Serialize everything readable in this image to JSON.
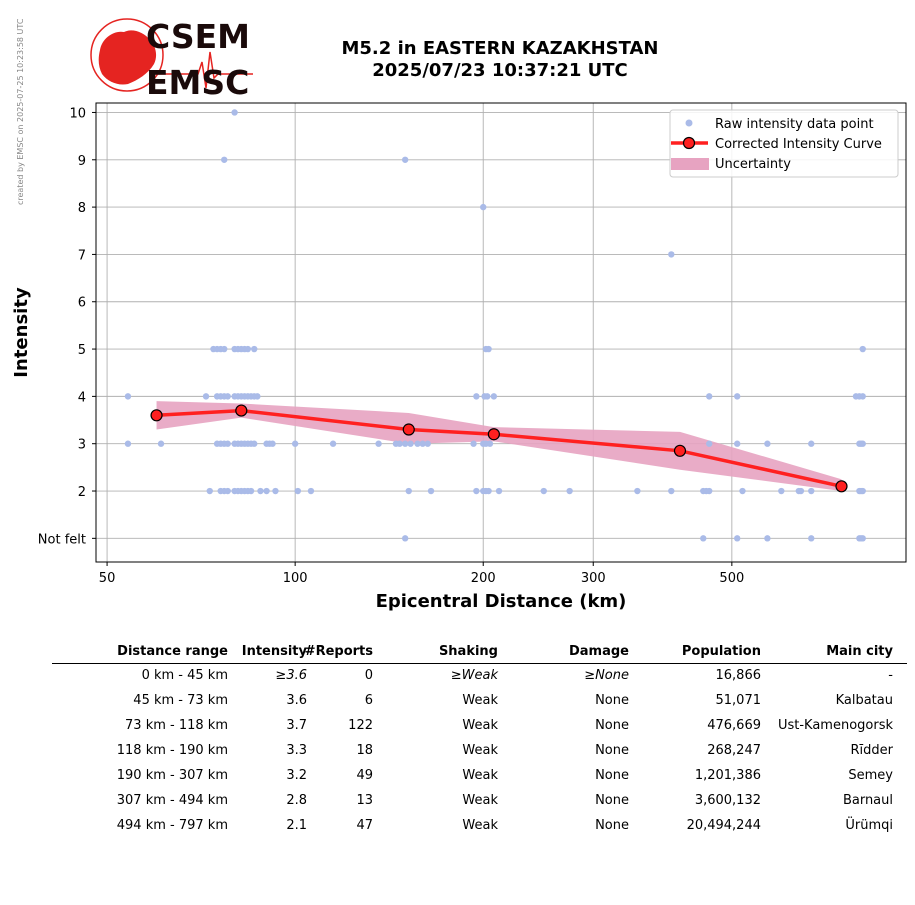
{
  "watermark": "created by EMSC on 2025-07-25 10:23:58 UTC",
  "logo": {
    "line1": "CSEM",
    "line2": "EMSC"
  },
  "header": {
    "title_line1": "M5.2 in EASTERN KAZAKHSTAN",
    "title_line2": "2025/07/23 10:37:21 UTC"
  },
  "colors": {
    "raw_points": "#aabbe8",
    "curve": "#ff2020",
    "uncertainty": "#e7a3c1",
    "logo_red": "#e52421"
  },
  "chart_data": {
    "type": "scatter",
    "xlabel": "Epicentral Distance (km)",
    "ylabel": "Intensity",
    "xscale": "log",
    "xlim": [
      48,
      950
    ],
    "ylim": [
      0.5,
      10.2
    ],
    "xticks": [
      50,
      100,
      200,
      300,
      500
    ],
    "yticks": [
      1,
      2,
      3,
      4,
      5,
      6,
      7,
      8,
      9,
      10
    ],
    "ytick_labels": [
      "Not felt",
      "2",
      "3",
      "4",
      "5",
      "6",
      "7",
      "8",
      "9",
      "10"
    ],
    "grid": true,
    "legend_position": "top-right",
    "legend": [
      "Raw intensity data point",
      "Corrected Intensity Curve",
      "Uncertainty"
    ],
    "curve": {
      "name": "Corrected Intensity Curve",
      "x": [
        60,
        82,
        152,
        208,
        413,
        749
      ],
      "y": [
        3.6,
        3.7,
        3.3,
        3.2,
        2.85,
        2.1
      ]
    },
    "uncertainty": {
      "name": "Uncertainty",
      "x": [
        60,
        82,
        152,
        208,
        413,
        749
      ],
      "upper": [
        3.9,
        3.85,
        3.65,
        3.35,
        3.25,
        2.25
      ],
      "lower": [
        3.3,
        3.55,
        3.0,
        3.05,
        2.45,
        2.0
      ]
    },
    "raw": {
      "name": "Raw intensity data point",
      "points": [
        [
          80,
          10
        ],
        [
          77,
          9
        ],
        [
          150,
          9
        ],
        [
          200,
          8
        ],
        [
          400,
          7
        ],
        [
          74,
          5
        ],
        [
          75,
          5
        ],
        [
          76,
          5
        ],
        [
          77,
          5
        ],
        [
          80,
          5
        ],
        [
          81,
          5
        ],
        [
          82,
          5
        ],
        [
          83,
          5
        ],
        [
          84,
          5
        ],
        [
          86,
          5
        ],
        [
          202,
          5
        ],
        [
          204,
          5
        ],
        [
          810,
          5
        ],
        [
          54,
          4
        ],
        [
          72,
          4
        ],
        [
          75,
          4
        ],
        [
          76,
          4
        ],
        [
          77,
          4
        ],
        [
          78,
          4
        ],
        [
          80,
          4
        ],
        [
          81,
          4
        ],
        [
          82,
          4
        ],
        [
          83,
          4
        ],
        [
          84,
          4
        ],
        [
          85,
          4
        ],
        [
          86,
          4
        ],
        [
          87,
          4
        ],
        [
          195,
          4
        ],
        [
          201,
          4
        ],
        [
          203,
          4
        ],
        [
          208,
          4
        ],
        [
          460,
          4
        ],
        [
          510,
          4
        ],
        [
          790,
          4
        ],
        [
          800,
          4
        ],
        [
          810,
          4
        ],
        [
          54,
          3
        ],
        [
          61,
          3
        ],
        [
          75,
          3
        ],
        [
          76,
          3
        ],
        [
          77,
          3
        ],
        [
          78,
          3
        ],
        [
          80,
          3
        ],
        [
          81,
          3
        ],
        [
          82,
          3
        ],
        [
          83,
          3
        ],
        [
          84,
          3
        ],
        [
          85,
          3
        ],
        [
          86,
          3
        ],
        [
          90,
          3
        ],
        [
          91,
          3
        ],
        [
          92,
          3
        ],
        [
          100,
          3
        ],
        [
          115,
          3
        ],
        [
          136,
          3
        ],
        [
          145,
          3
        ],
        [
          147,
          3
        ],
        [
          150,
          3
        ],
        [
          153,
          3
        ],
        [
          157,
          3
        ],
        [
          160,
          3
        ],
        [
          163,
          3
        ],
        [
          193,
          3
        ],
        [
          200,
          3
        ],
        [
          202,
          3
        ],
        [
          205,
          3
        ],
        [
          460,
          3
        ],
        [
          510,
          3
        ],
        [
          570,
          3
        ],
        [
          670,
          3
        ],
        [
          800,
          3
        ],
        [
          805,
          3
        ],
        [
          810,
          3
        ],
        [
          73,
          2
        ],
        [
          76,
          2
        ],
        [
          77,
          2
        ],
        [
          78,
          2
        ],
        [
          80,
          2
        ],
        [
          81,
          2
        ],
        [
          82,
          2
        ],
        [
          83,
          2
        ],
        [
          84,
          2
        ],
        [
          85,
          2
        ],
        [
          88,
          2
        ],
        [
          90,
          2
        ],
        [
          93,
          2
        ],
        [
          101,
          2
        ],
        [
          106,
          2
        ],
        [
          152,
          2
        ],
        [
          165,
          2
        ],
        [
          195,
          2
        ],
        [
          200,
          2
        ],
        [
          202,
          2
        ],
        [
          204,
          2
        ],
        [
          212,
          2
        ],
        [
          250,
          2
        ],
        [
          275,
          2
        ],
        [
          353,
          2
        ],
        [
          400,
          2
        ],
        [
          450,
          2
        ],
        [
          455,
          2
        ],
        [
          460,
          2
        ],
        [
          520,
          2
        ],
        [
          600,
          2
        ],
        [
          640,
          2
        ],
        [
          645,
          2
        ],
        [
          670,
          2
        ],
        [
          800,
          2
        ],
        [
          805,
          2
        ],
        [
          810,
          2
        ],
        [
          150,
          1
        ],
        [
          450,
          1
        ],
        [
          510,
          1
        ],
        [
          570,
          1
        ],
        [
          670,
          1
        ],
        [
          800,
          1
        ],
        [
          805,
          1
        ],
        [
          810,
          1
        ]
      ]
    }
  },
  "table": {
    "headers": [
      "Distance range",
      "Intensity",
      "#Reports",
      "Shaking",
      "Damage",
      "Population",
      "Main city"
    ],
    "rows": [
      {
        "range": "0 km -   45 km",
        "intensity": "≥3.6",
        "reports": "0",
        "shaking": "≥Weak",
        "damage": "≥None",
        "population": "16,866",
        "city": "-"
      },
      {
        "range": "45 km -   73 km",
        "intensity": "3.6",
        "reports": "6",
        "shaking": "Weak",
        "damage": "None",
        "population": "51,071",
        "city": "Kalbatau"
      },
      {
        "range": "73 km -  118 km",
        "intensity": "3.7",
        "reports": "122",
        "shaking": "Weak",
        "damage": "None",
        "population": "476,669",
        "city": "Ust-Kamenogorsk"
      },
      {
        "range": "118 km -  190 km",
        "intensity": "3.3",
        "reports": "18",
        "shaking": "Weak",
        "damage": "None",
        "population": "268,247",
        "city": "Rīdder"
      },
      {
        "range": "190 km -  307 km",
        "intensity": "3.2",
        "reports": "49",
        "shaking": "Weak",
        "damage": "None",
        "population": "1,201,386",
        "city": "Semey"
      },
      {
        "range": "307 km -  494 km",
        "intensity": "2.8",
        "reports": "13",
        "shaking": "Weak",
        "damage": "None",
        "population": "3,600,132",
        "city": "Barnaul"
      },
      {
        "range": "494 km -  797 km",
        "intensity": "2.1",
        "reports": "47",
        "shaking": "Weak",
        "damage": "None",
        "population": "20,494,244",
        "city": "Ürümqi"
      }
    ]
  }
}
